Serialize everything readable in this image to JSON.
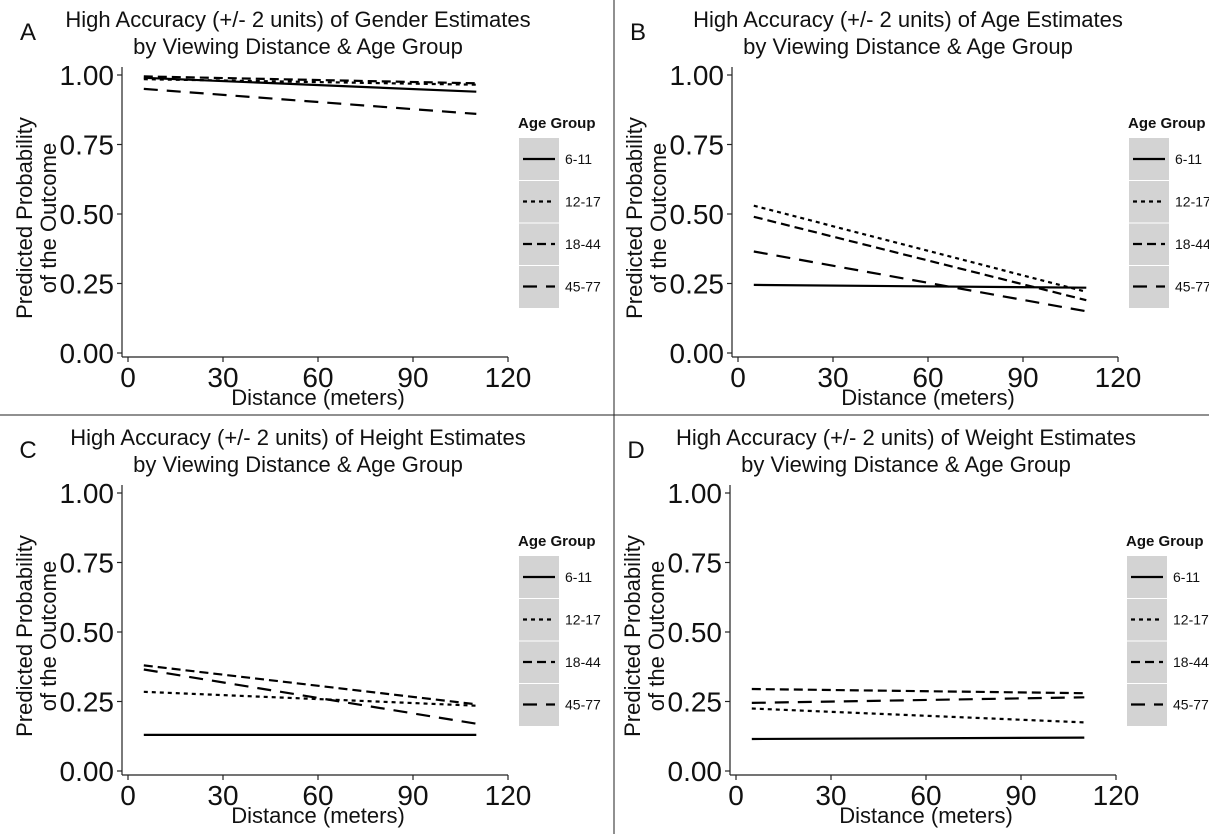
{
  "legend_title": "Age Group",
  "xlabel": "Distance (meters)",
  "ylabel_line1": "Predicted Probability",
  "ylabel_line2": "of the Outcome",
  "x_ticks": [
    "0",
    "30",
    "60",
    "90",
    "120"
  ],
  "y_ticks": [
    "0.00",
    "0.25",
    "0.50",
    "0.75",
    "1.00"
  ],
  "chart_data": [
    {
      "type": "line",
      "panel": "A",
      "title_line1": "High Accuracy (+/- 2 units) of Gender Estimates",
      "title_line2": "by Viewing Distance & Age Group",
      "xlim": [
        0,
        120
      ],
      "ylim": [
        0,
        1
      ],
      "legend_position": "right",
      "series": [
        {
          "name": "6-11",
          "style": "solid",
          "x": [
            5,
            110
          ],
          "y": [
            0.99,
            0.94
          ]
        },
        {
          "name": "12-17",
          "style": "dotted",
          "x": [
            5,
            110
          ],
          "y": [
            0.985,
            0.965
          ]
        },
        {
          "name": "18-44",
          "style": "dashed",
          "x": [
            5,
            110
          ],
          "y": [
            0.995,
            0.97
          ]
        },
        {
          "name": "45-77",
          "style": "longdash",
          "x": [
            5,
            110
          ],
          "y": [
            0.95,
            0.86
          ]
        }
      ]
    },
    {
      "type": "line",
      "panel": "B",
      "title_line1": "High Accuracy (+/- 2 units) of Age Estimates",
      "title_line2": "by Viewing Distance & Age Group",
      "xlim": [
        0,
        120
      ],
      "ylim": [
        0,
        1
      ],
      "legend_position": "right",
      "series": [
        {
          "name": "6-11",
          "style": "solid",
          "x": [
            5,
            110
          ],
          "y": [
            0.245,
            0.235
          ]
        },
        {
          "name": "12-17",
          "style": "dotted",
          "x": [
            5,
            110
          ],
          "y": [
            0.53,
            0.22
          ]
        },
        {
          "name": "18-44",
          "style": "dashed",
          "x": [
            5,
            110
          ],
          "y": [
            0.49,
            0.19
          ]
        },
        {
          "name": "45-77",
          "style": "longdash",
          "x": [
            5,
            110
          ],
          "y": [
            0.365,
            0.15
          ]
        }
      ]
    },
    {
      "type": "line",
      "panel": "C",
      "title_line1": "High Accuracy (+/- 2 units) of Height Estimates",
      "title_line2": "by Viewing Distance & Age Group",
      "xlim": [
        0,
        120
      ],
      "ylim": [
        0,
        1
      ],
      "legend_position": "right",
      "series": [
        {
          "name": "6-11",
          "style": "solid",
          "x": [
            5,
            110
          ],
          "y": [
            0.13,
            0.13
          ]
        },
        {
          "name": "12-17",
          "style": "dotted",
          "x": [
            5,
            110
          ],
          "y": [
            0.285,
            0.235
          ]
        },
        {
          "name": "18-44",
          "style": "dashed",
          "x": [
            5,
            110
          ],
          "y": [
            0.38,
            0.24
          ]
        },
        {
          "name": "45-77",
          "style": "longdash",
          "x": [
            5,
            110
          ],
          "y": [
            0.365,
            0.17
          ]
        }
      ]
    },
    {
      "type": "line",
      "panel": "D",
      "title_line1": "High Accuracy (+/- 2 units) of Weight Estimates",
      "title_line2": "by Viewing Distance & Age Group",
      "xlim": [
        0,
        120
      ],
      "ylim": [
        0,
        1
      ],
      "legend_position": "right",
      "series": [
        {
          "name": "6-11",
          "style": "solid",
          "x": [
            5,
            110
          ],
          "y": [
            0.115,
            0.12
          ]
        },
        {
          "name": "12-17",
          "style": "dotted",
          "x": [
            5,
            110
          ],
          "y": [
            0.225,
            0.175
          ]
        },
        {
          "name": "18-44",
          "style": "dashed",
          "x": [
            5,
            110
          ],
          "y": [
            0.295,
            0.28
          ]
        },
        {
          "name": "45-77",
          "style": "longdash",
          "x": [
            5,
            110
          ],
          "y": [
            0.245,
            0.265
          ]
        }
      ]
    }
  ]
}
